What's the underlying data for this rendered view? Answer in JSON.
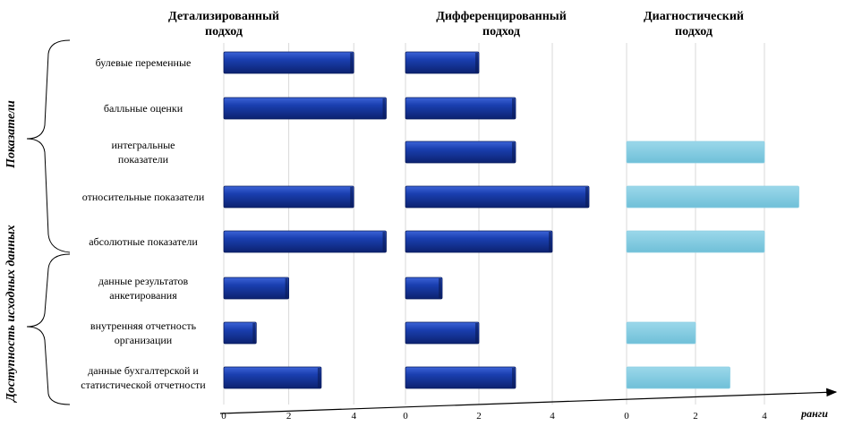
{
  "chart_data": {
    "type": "bar",
    "orientation": "horizontal",
    "grouping_labels": [
      "Показатели",
      "Доступность исходных данных"
    ],
    "categories": [
      "булевые переменные",
      "балльные оценки",
      "интегральные показатели",
      "относительные показатели",
      "абсолютные показатели",
      "данные результатов анкетирования",
      "внутренняя отчетность организации",
      "данные бухгалтерской и статистической отчетности"
    ],
    "category_lines": [
      [
        "булевые переменные"
      ],
      [
        "балльные оценки"
      ],
      [
        "интегральные",
        "показатели"
      ],
      [
        "относительные показатели"
      ],
      [
        "абсолютные показатели"
      ],
      [
        "данные результатов",
        "анкетирования"
      ],
      [
        "внутренняя отчетность",
        "организации"
      ],
      [
        "данные бухгалтерской и",
        "статистической отчетности"
      ]
    ],
    "xlabel": "ранги",
    "panels": [
      {
        "title_lines": [
          "Детализированный",
          "подход"
        ],
        "values": [
          4,
          5,
          null,
          4,
          5,
          2,
          1,
          3
        ],
        "xlim": [
          0,
          5
        ],
        "ticks": [
          0,
          2,
          4
        ],
        "color": "#1a3fb0"
      },
      {
        "title_lines": [
          "Дифференцированный",
          "подход"
        ],
        "values": [
          2,
          3,
          3,
          5,
          4,
          1,
          2,
          3
        ],
        "xlim": [
          0,
          5
        ],
        "ticks": [
          0,
          2,
          4
        ],
        "color": "#1a3fb0"
      },
      {
        "title_lines": [
          "Диагностический",
          "подход"
        ],
        "values": [
          null,
          null,
          4,
          5,
          4,
          null,
          2,
          3
        ],
        "xlim": [
          0,
          5
        ],
        "ticks": [
          0,
          2,
          4
        ],
        "color": "#7ecbe0"
      }
    ]
  }
}
